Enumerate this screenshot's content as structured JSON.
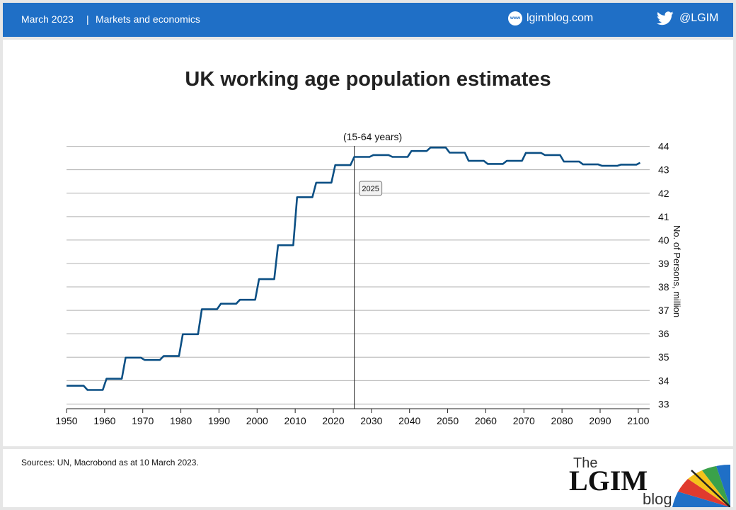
{
  "header": {
    "date": "March 2023",
    "separator": "|",
    "category": "Markets and economics",
    "site": "lgimblog.com",
    "site_icon": "www-globe-icon",
    "www_label": "www",
    "twitter": "@LGIM",
    "twitter_icon": "twitter-bird-icon"
  },
  "footer": {
    "source": "Sources: UN, Macrobond as at 10 March 2023.",
    "logo_the": "The",
    "logo_main": "LGIM",
    "logo_blog": "blog"
  },
  "colors": {
    "header_bg": "#1f6fc6",
    "line": "#0b4f84"
  },
  "chart_data": {
    "type": "line",
    "title": "UK working age population estimates",
    "annotation_top": "(15-64 years)",
    "marker_label": "2025",
    "marker_x": 2025.5,
    "ylabel": "No. of Persons, million",
    "xlim": [
      1950,
      2103
    ],
    "ylim": [
      32.8,
      44.2
    ],
    "x_ticks": [
      1950,
      1960,
      1970,
      1980,
      1990,
      2000,
      2010,
      2020,
      2030,
      2040,
      2050,
      2060,
      2070,
      2080,
      2090,
      2100
    ],
    "y_ticks": [
      33,
      34,
      35,
      36,
      37,
      38,
      39,
      40,
      41,
      42,
      43,
      44
    ],
    "grid": true,
    "series": [
      {
        "values_note": "",
        "points": [
          [
            1950,
            33.78
          ],
          [
            1954.5,
            33.78
          ],
          [
            1955.5,
            33.6
          ],
          [
            1959.5,
            33.6
          ],
          [
            1960.5,
            34.08
          ],
          [
            1964.5,
            34.08
          ],
          [
            1965.5,
            34.98
          ],
          [
            1969.5,
            34.98
          ],
          [
            1970.5,
            34.88
          ],
          [
            1974.5,
            34.88
          ],
          [
            1975.5,
            35.05
          ],
          [
            1979.5,
            35.05
          ],
          [
            1980.5,
            35.98
          ],
          [
            1984.5,
            35.98
          ],
          [
            1985.5,
            37.05
          ],
          [
            1989.5,
            37.05
          ],
          [
            1990.5,
            37.28
          ],
          [
            1994.5,
            37.28
          ],
          [
            1995.5,
            37.45
          ],
          [
            1999.5,
            37.45
          ],
          [
            2000.5,
            38.33
          ],
          [
            2004.5,
            38.33
          ],
          [
            2005.5,
            39.78
          ],
          [
            2009.5,
            39.78
          ],
          [
            2010.5,
            41.83
          ],
          [
            2014.5,
            41.83
          ],
          [
            2015.5,
            42.45
          ],
          [
            2019.5,
            42.45
          ],
          [
            2020.5,
            43.2
          ],
          [
            2024.5,
            43.2
          ],
          [
            2025.5,
            43.55
          ],
          [
            2029.5,
            43.55
          ],
          [
            2030.5,
            43.63
          ],
          [
            2034.5,
            43.63
          ],
          [
            2035.5,
            43.55
          ],
          [
            2039.5,
            43.55
          ],
          [
            2040.5,
            43.8
          ],
          [
            2044.5,
            43.8
          ],
          [
            2045.5,
            43.95
          ],
          [
            2049.5,
            43.95
          ],
          [
            2050.5,
            43.73
          ],
          [
            2054.5,
            43.73
          ],
          [
            2055.5,
            43.38
          ],
          [
            2059.5,
            43.38
          ],
          [
            2060.5,
            43.25
          ],
          [
            2064.5,
            43.25
          ],
          [
            2065.5,
            43.38
          ],
          [
            2069.5,
            43.38
          ],
          [
            2070.5,
            43.72
          ],
          [
            2074.5,
            43.72
          ],
          [
            2075.5,
            43.63
          ],
          [
            2079.5,
            43.63
          ],
          [
            2080.5,
            43.35
          ],
          [
            2084.5,
            43.35
          ],
          [
            2085.5,
            43.23
          ],
          [
            2089.5,
            43.23
          ],
          [
            2090.5,
            43.17
          ],
          [
            2094.5,
            43.17
          ],
          [
            2095.5,
            43.22
          ],
          [
            2099.5,
            43.22
          ],
          [
            2100.5,
            43.3
          ]
        ]
      }
    ]
  }
}
